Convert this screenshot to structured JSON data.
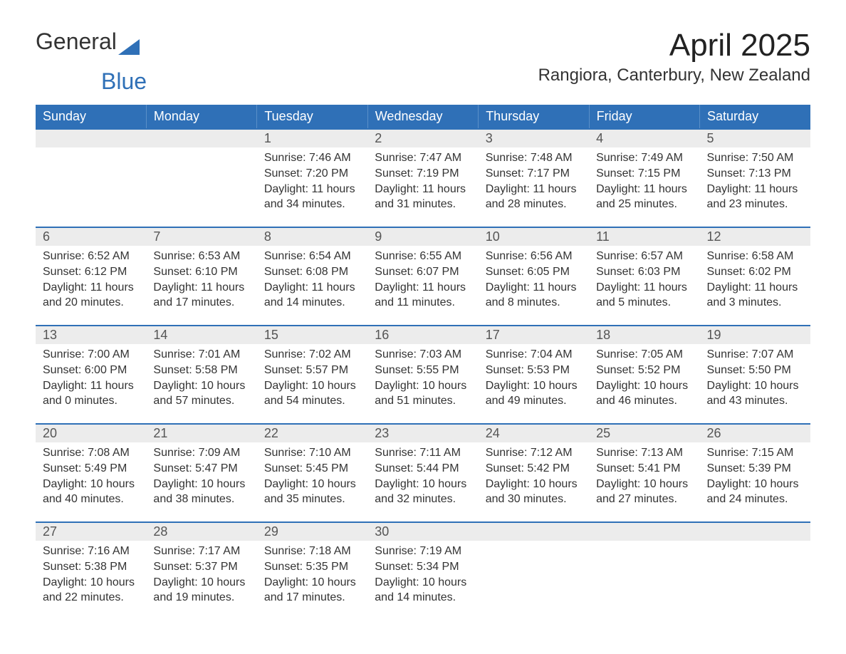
{
  "logo": {
    "word1": "General",
    "word2": "Blue"
  },
  "title": "April 2025",
  "location": "Rangiora, Canterbury, New Zealand",
  "weekdays": [
    "Sunday",
    "Monday",
    "Tuesday",
    "Wednesday",
    "Thursday",
    "Friday",
    "Saturday"
  ],
  "labels": {
    "sunrise": "Sunrise:",
    "sunset": "Sunset:",
    "daylight": "Daylight:"
  },
  "colors": {
    "header_bg": "#2f70b7",
    "header_text": "#ffffff",
    "daynum_bg": "#ececec",
    "body_text": "#333333",
    "accent_line": "#2f70b7",
    "page_bg": "#ffffff"
  },
  "fonts": {
    "base_size_pt": 12,
    "title_size_pt": 33,
    "location_size_pt": 18,
    "weekday_size_pt": 14
  },
  "weeks": [
    [
      null,
      null,
      {
        "day": "1",
        "sunrise": "7:46 AM",
        "sunset": "7:20 PM",
        "daylight": "11 hours and 34 minutes."
      },
      {
        "day": "2",
        "sunrise": "7:47 AM",
        "sunset": "7:19 PM",
        "daylight": "11 hours and 31 minutes."
      },
      {
        "day": "3",
        "sunrise": "7:48 AM",
        "sunset": "7:17 PM",
        "daylight": "11 hours and 28 minutes."
      },
      {
        "day": "4",
        "sunrise": "7:49 AM",
        "sunset": "7:15 PM",
        "daylight": "11 hours and 25 minutes."
      },
      {
        "day": "5",
        "sunrise": "7:50 AM",
        "sunset": "7:13 PM",
        "daylight": "11 hours and 23 minutes."
      }
    ],
    [
      {
        "day": "6",
        "sunrise": "6:52 AM",
        "sunset": "6:12 PM",
        "daylight": "11 hours and 20 minutes."
      },
      {
        "day": "7",
        "sunrise": "6:53 AM",
        "sunset": "6:10 PM",
        "daylight": "11 hours and 17 minutes."
      },
      {
        "day": "8",
        "sunrise": "6:54 AM",
        "sunset": "6:08 PM",
        "daylight": "11 hours and 14 minutes."
      },
      {
        "day": "9",
        "sunrise": "6:55 AM",
        "sunset": "6:07 PM",
        "daylight": "11 hours and 11 minutes."
      },
      {
        "day": "10",
        "sunrise": "6:56 AM",
        "sunset": "6:05 PM",
        "daylight": "11 hours and 8 minutes."
      },
      {
        "day": "11",
        "sunrise": "6:57 AM",
        "sunset": "6:03 PM",
        "daylight": "11 hours and 5 minutes."
      },
      {
        "day": "12",
        "sunrise": "6:58 AM",
        "sunset": "6:02 PM",
        "daylight": "11 hours and 3 minutes."
      }
    ],
    [
      {
        "day": "13",
        "sunrise": "7:00 AM",
        "sunset": "6:00 PM",
        "daylight": "11 hours and 0 minutes."
      },
      {
        "day": "14",
        "sunrise": "7:01 AM",
        "sunset": "5:58 PM",
        "daylight": "10 hours and 57 minutes."
      },
      {
        "day": "15",
        "sunrise": "7:02 AM",
        "sunset": "5:57 PM",
        "daylight": "10 hours and 54 minutes."
      },
      {
        "day": "16",
        "sunrise": "7:03 AM",
        "sunset": "5:55 PM",
        "daylight": "10 hours and 51 minutes."
      },
      {
        "day": "17",
        "sunrise": "7:04 AM",
        "sunset": "5:53 PM",
        "daylight": "10 hours and 49 minutes."
      },
      {
        "day": "18",
        "sunrise": "7:05 AM",
        "sunset": "5:52 PM",
        "daylight": "10 hours and 46 minutes."
      },
      {
        "day": "19",
        "sunrise": "7:07 AM",
        "sunset": "5:50 PM",
        "daylight": "10 hours and 43 minutes."
      }
    ],
    [
      {
        "day": "20",
        "sunrise": "7:08 AM",
        "sunset": "5:49 PM",
        "daylight": "10 hours and 40 minutes."
      },
      {
        "day": "21",
        "sunrise": "7:09 AM",
        "sunset": "5:47 PM",
        "daylight": "10 hours and 38 minutes."
      },
      {
        "day": "22",
        "sunrise": "7:10 AM",
        "sunset": "5:45 PM",
        "daylight": "10 hours and 35 minutes."
      },
      {
        "day": "23",
        "sunrise": "7:11 AM",
        "sunset": "5:44 PM",
        "daylight": "10 hours and 32 minutes."
      },
      {
        "day": "24",
        "sunrise": "7:12 AM",
        "sunset": "5:42 PM",
        "daylight": "10 hours and 30 minutes."
      },
      {
        "day": "25",
        "sunrise": "7:13 AM",
        "sunset": "5:41 PM",
        "daylight": "10 hours and 27 minutes."
      },
      {
        "day": "26",
        "sunrise": "7:15 AM",
        "sunset": "5:39 PM",
        "daylight": "10 hours and 24 minutes."
      }
    ],
    [
      {
        "day": "27",
        "sunrise": "7:16 AM",
        "sunset": "5:38 PM",
        "daylight": "10 hours and 22 minutes."
      },
      {
        "day": "28",
        "sunrise": "7:17 AM",
        "sunset": "5:37 PM",
        "daylight": "10 hours and 19 minutes."
      },
      {
        "day": "29",
        "sunrise": "7:18 AM",
        "sunset": "5:35 PM",
        "daylight": "10 hours and 17 minutes."
      },
      {
        "day": "30",
        "sunrise": "7:19 AM",
        "sunset": "5:34 PM",
        "daylight": "10 hours and 14 minutes."
      },
      null,
      null,
      null
    ]
  ]
}
